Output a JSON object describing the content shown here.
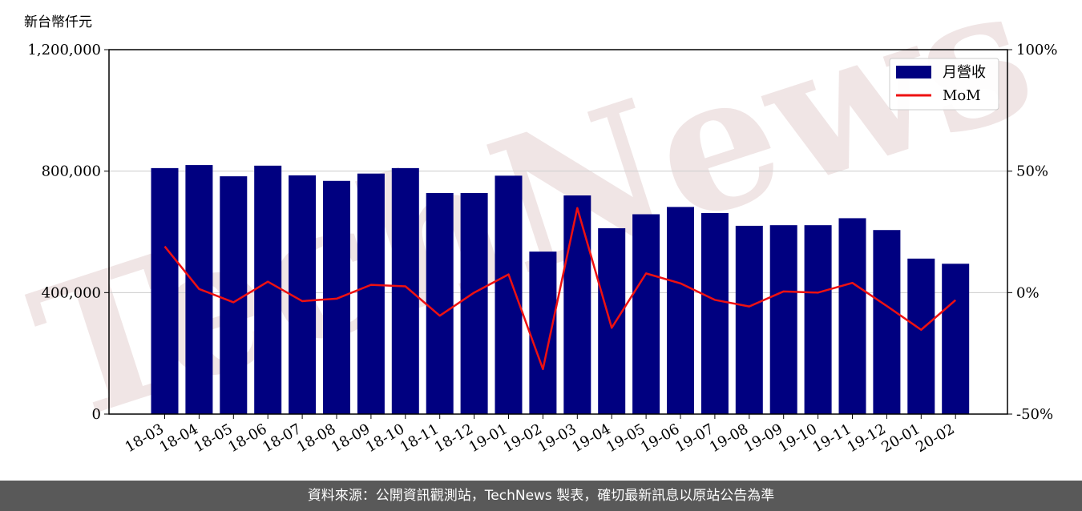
{
  "chart_data": {
    "type": "bar",
    "unit_label": "新台幣仟元",
    "categories": [
      "18-03",
      "18-04",
      "18-05",
      "18-06",
      "18-07",
      "18-08",
      "18-09",
      "18-10",
      "18-11",
      "18-12",
      "19-01",
      "19-02",
      "19-03",
      "19-04",
      "19-05",
      "19-06",
      "19-07",
      "19-08",
      "19-09",
      "19-10",
      "19-11",
      "19-12",
      "20-01",
      "20-02"
    ],
    "series": [
      {
        "name": "月營收",
        "type": "bar",
        "axis": "left",
        "color": "#000080",
        "values": [
          810000,
          820000,
          783000,
          818000,
          786000,
          768000,
          792000,
          810000,
          728000,
          728000,
          785000,
          535000,
          720000,
          612000,
          658000,
          682000,
          662000,
          620000,
          622000,
          622000,
          645000,
          606000,
          512000,
          495000
        ]
      },
      {
        "name": "MoM",
        "type": "line",
        "axis": "right",
        "color": "#ee1111",
        "unit": "%",
        "values": [
          19,
          1.5,
          -4,
          4.5,
          -3.5,
          -2.5,
          3.2,
          2.6,
          -9.5,
          0,
          7.5,
          -31.5,
          34.8,
          -14.5,
          7.9,
          3.8,
          -3,
          -5.7,
          0.5,
          0,
          4,
          -5.5,
          -15.3,
          -3.1
        ]
      }
    ],
    "y_left": {
      "min": 0,
      "max": 1200000,
      "ticks": [
        0,
        400000,
        800000,
        1200000
      ],
      "tick_labels": [
        "0",
        "400,000",
        "800,000",
        "1,200,000"
      ]
    },
    "y_right": {
      "min": -50,
      "max": 100,
      "ticks": [
        -50,
        0,
        50,
        100
      ],
      "tick_labels": [
        "-50%",
        "0%",
        "50%",
        "100%"
      ]
    },
    "grid": "horizontal",
    "legend": {
      "placement": "top-right",
      "items": [
        "月營收",
        "MoM"
      ]
    }
  },
  "watermark": "TechNews",
  "footer": {
    "text": "資料來源：公開資訊觀測站，TechNews 製表，確切最新訊息以原站公告為準"
  }
}
